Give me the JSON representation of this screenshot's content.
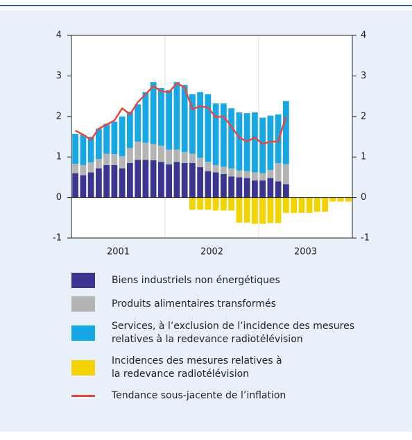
{
  "chart_data": {
    "type": "bar",
    "year_labels": [
      "2001",
      "2002",
      "2003"
    ],
    "ylim": [
      -1,
      4
    ],
    "yticks": [
      -1,
      0,
      1,
      2,
      3,
      4
    ],
    "y2lim": [
      -1,
      4
    ],
    "y2ticks": [
      -1,
      0,
      1,
      2,
      3,
      4
    ],
    "series": [
      {
        "name": "Biens industriels non énergétiques",
        "color": "#3b3592",
        "kind": "stack",
        "values": [
          0.6,
          0.55,
          0.62,
          0.72,
          0.8,
          0.8,
          0.72,
          0.85,
          0.93,
          0.93,
          0.92,
          0.88,
          0.82,
          0.88,
          0.85,
          0.85,
          0.75,
          0.65,
          0.62,
          0.58,
          0.52,
          0.5,
          0.48,
          0.42,
          0.42,
          0.48,
          0.4,
          0.33,
          null,
          null,
          null,
          null,
          null,
          null,
          null,
          null
        ]
      },
      {
        "name": "Produits alimentaires transformés",
        "color": "#b4b4b4",
        "kind": "stack",
        "values": [
          0.23,
          0.25,
          0.25,
          0.23,
          0.28,
          0.27,
          0.3,
          0.37,
          0.45,
          0.42,
          0.4,
          0.4,
          0.36,
          0.3,
          0.27,
          0.23,
          0.23,
          0.23,
          0.18,
          0.18,
          0.2,
          0.17,
          0.17,
          0.2,
          0.18,
          0.2,
          0.45,
          0.49,
          null,
          null,
          null,
          null,
          null,
          null,
          null,
          null
        ]
      },
      {
        "name": "Services, à l’exclusion de l’incidence des mesures relatives à la redevance radiotélévision",
        "color": "#16a8e4",
        "kind": "stack",
        "values": [
          0.74,
          0.75,
          0.63,
          0.75,
          0.74,
          0.8,
          0.98,
          0.9,
          0.92,
          1.25,
          1.53,
          1.42,
          1.47,
          1.67,
          1.66,
          1.47,
          1.62,
          1.67,
          1.52,
          1.56,
          1.48,
          1.43,
          1.43,
          1.48,
          1.37,
          1.34,
          1.2,
          1.56,
          null,
          null,
          null,
          null,
          null,
          null,
          null,
          null
        ]
      },
      {
        "name": "Incidences des mesures relatives à la redevance radiotélévision",
        "color": "#f4d400",
        "kind": "neg",
        "values": [
          null,
          null,
          null,
          null,
          null,
          null,
          null,
          null,
          null,
          null,
          null,
          null,
          null,
          null,
          null,
          -0.3,
          -0.3,
          -0.3,
          -0.32,
          -0.32,
          -0.32,
          -0.62,
          -0.62,
          -0.65,
          -0.65,
          -0.63,
          -0.63,
          -0.38,
          -0.38,
          -0.38,
          -0.38,
          -0.35,
          -0.35,
          -0.1,
          -0.1,
          -0.1
        ]
      },
      {
        "name": "Tendance sous-jacente de l’inflation",
        "color": "#e8473e",
        "kind": "line",
        "values": [
          1.65,
          1.55,
          1.42,
          1.7,
          1.8,
          1.9,
          2.2,
          2.05,
          2.35,
          2.55,
          2.75,
          2.62,
          2.6,
          2.82,
          2.72,
          2.18,
          2.25,
          2.22,
          1.98,
          2.0,
          1.75,
          1.48,
          1.38,
          1.48,
          1.32,
          1.38,
          1.38,
          2.0,
          null,
          null,
          null,
          null,
          null,
          null,
          null,
          null
        ]
      }
    ]
  }
}
